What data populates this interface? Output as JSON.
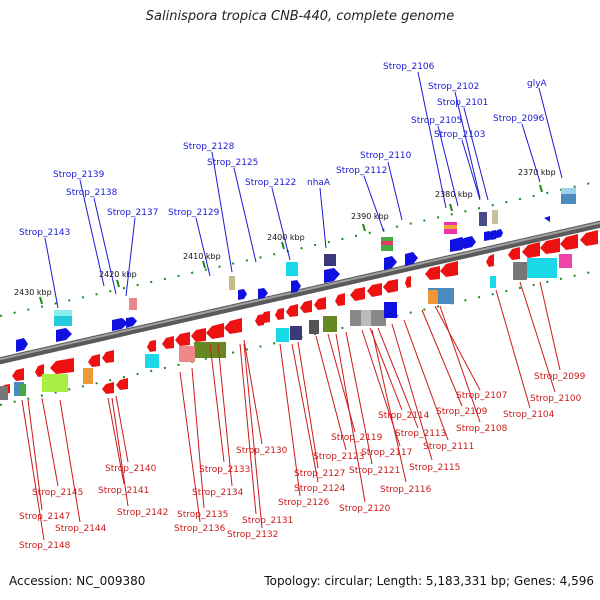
{
  "title": "Salinispora tropica CNB-440, complete genome",
  "footer": {
    "accession": "Accession: NC_009380",
    "summary": "Topology: circular; Length: 5,183,331 bp; Genes: 4,596"
  },
  "colors": {
    "forward_gene": "#1010e0",
    "reverse_gene": "#ee1111",
    "label_forward": "#1a1ad6",
    "label_reverse": "#cc1a1a",
    "backbone": "#808080",
    "tick": "#1a8a1a"
  },
  "kbp_ticks": [
    {
      "label": "2370 kbp"
    },
    {
      "label": "2380 kbp"
    },
    {
      "label": "2390 kbp"
    },
    {
      "label": "2400 kbp"
    },
    {
      "label": "2410 kbp"
    },
    {
      "label": "2420 kbp"
    },
    {
      "label": "2430 kbp"
    }
  ],
  "forward_labels": [
    {
      "text": "Strop_2106"
    },
    {
      "text": "Strop_2102"
    },
    {
      "text": "glyA"
    },
    {
      "text": "Strop_2101"
    },
    {
      "text": "Strop_2105"
    },
    {
      "text": "Strop_2096"
    },
    {
      "text": "Strop_2103"
    },
    {
      "text": "Strop_2128"
    },
    {
      "text": "Strop_2110"
    },
    {
      "text": "Strop_2125"
    },
    {
      "text": "Strop_2112"
    },
    {
      "text": "Strop_2139"
    },
    {
      "text": "Strop_2122"
    },
    {
      "text": "nhaA"
    },
    {
      "text": "Strop_2138"
    },
    {
      "text": "Strop_2137"
    },
    {
      "text": "Strop_2129"
    },
    {
      "text": "Strop_2143"
    }
  ],
  "reverse_labels": [
    {
      "text": "Strop_2099"
    },
    {
      "text": "Strop_2107"
    },
    {
      "text": "Strop_2100"
    },
    {
      "text": "Strop_2109"
    },
    {
      "text": "Strop_2104"
    },
    {
      "text": "Strop_2114"
    },
    {
      "text": "Strop_2108"
    },
    {
      "text": "Strop_2113"
    },
    {
      "text": "Strop_2119"
    },
    {
      "text": "Strop_2111"
    },
    {
      "text": "Strop_2130"
    },
    {
      "text": "Strop_2123"
    },
    {
      "text": "Strop_2117"
    },
    {
      "text": "Strop_2140"
    },
    {
      "text": "Strop_2133"
    },
    {
      "text": "Strop_2127"
    },
    {
      "text": "Strop_2121"
    },
    {
      "text": "Strop_2115"
    },
    {
      "text": "Strop_2124"
    },
    {
      "text": "Strop_2116"
    },
    {
      "text": "Strop_2145"
    },
    {
      "text": "Strop_2141"
    },
    {
      "text": "Strop_2134"
    },
    {
      "text": "Strop_2126"
    },
    {
      "text": "Strop_2120"
    },
    {
      "text": "Strop_2142"
    },
    {
      "text": "Strop_2135"
    },
    {
      "text": "Strop_2131"
    },
    {
      "text": "Strop_2147"
    },
    {
      "text": "Strop_2144"
    },
    {
      "text": "Strop_2136"
    },
    {
      "text": "Strop_2132"
    },
    {
      "text": "Strop_2148"
    }
  ]
}
